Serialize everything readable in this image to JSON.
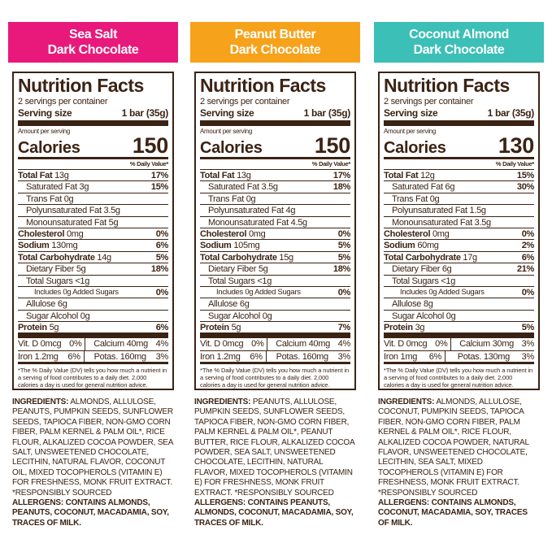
{
  "panels": [
    {
      "color": "#e8197a",
      "header": [
        "Sea Salt",
        "Dark Chocolate"
      ],
      "facts": {
        "title": "Nutrition Facts",
        "servings": "2 servings per container",
        "serving_size_label": "Serving size",
        "serving_size": "1 bar (35g)",
        "amount_label": "Amount per serving",
        "calories_label": "Calories",
        "calories": "150",
        "dv_header": "% Daily Value*",
        "rows": [
          {
            "label": "Total Fat",
            "amount": "13g",
            "dv": "17%"
          },
          {
            "label": "Saturated Fat",
            "amount": "3g",
            "dv": "15%"
          },
          {
            "label": "Trans Fat",
            "amount": "0g"
          },
          {
            "label": "Polyunsaturated Fat",
            "amount": "3.5g"
          },
          {
            "label": "Monounsaturated Fat",
            "amount": "5g"
          },
          {
            "label": "Cholesterol",
            "amount": "0mg",
            "dv": "0%"
          },
          {
            "label": "Sodium",
            "amount": "130mg",
            "dv": "6%"
          },
          {
            "label": "Total Carbohydrate",
            "amount": "14g",
            "dv": "5%"
          },
          {
            "label": "Dietary Fiber",
            "amount": "5g",
            "dv": "18%"
          },
          {
            "label": "Total Sugars",
            "amount": "<1g"
          },
          {
            "label": "Includes 0g Added Sugars",
            "dv": "0%"
          },
          {
            "label": "Allulose",
            "amount": "6g"
          },
          {
            "label": "Sugar Alcohol",
            "amount": "0g"
          },
          {
            "label": "Protein",
            "amount": "5g",
            "dv": "6%"
          }
        ],
        "vitamins": [
          [
            "Vit. D 0mcg",
            "0%",
            "Calcium 40mg",
            "4%"
          ],
          [
            "Iron 1.2mg",
            "6%",
            "Potas. 160mg",
            "3%"
          ]
        ],
        "footnote": "*The % Daily Value (DV) tells you how much a nutrient in a serving of food contributes to a daily diet. 2,000 calories a day is used for general nutrition advice."
      },
      "ingredients_label": "INGREDIENTS:",
      "ingredients": "ALMONDS, ALLULOSE, PEANUTS, PUMPKIN SEEDS, SUNFLOWER SEEDS, TAPIOCA FIBER, NON-GMO CORN FIBER, PALM KERNEL & PALM OIL*, RICE FLOUR, ALKALIZED COCOA POWDER, SEA SALT, UNSWEETENED CHOCOLATE, LECITHIN, NATURAL FLAVOR, COCONUT OIL, MIXED TOCOPHEROLS (VITAMIN E) FOR FRESHNESS, MONK FRUIT EXTRACT. *RESPONSIBLY SOURCED",
      "allergens": "ALLERGENS: CONTAINS ALMONDS, PEANUTS, COCONUT, MACADAMIA, SOY, TRACES OF MILK."
    },
    {
      "color": "#f7a21b",
      "header": [
        "Peanut Butter",
        "Dark Chocolate"
      ],
      "facts": {
        "title": "Nutrition Facts",
        "servings": "2 servings per container",
        "serving_size_label": "Serving size",
        "serving_size": "1 bar (35g)",
        "amount_label": "Amount per serving",
        "calories_label": "Calories",
        "calories": "150",
        "dv_header": "% Daily Value*",
        "rows": [
          {
            "label": "Total Fat",
            "amount": "13g",
            "dv": "17%"
          },
          {
            "label": "Saturated Fat",
            "amount": "3.5g",
            "dv": "18%"
          },
          {
            "label": "Trans Fat",
            "amount": "0g"
          },
          {
            "label": "Polyunsaturated Fat",
            "amount": "4g"
          },
          {
            "label": "Monounsaturated Fat",
            "amount": "4.5g"
          },
          {
            "label": "Cholesterol",
            "amount": "0mg",
            "dv": "0%"
          },
          {
            "label": "Sodium",
            "amount": "105mg",
            "dv": "5%"
          },
          {
            "label": "Total Carbohydrate",
            "amount": "15g",
            "dv": "5%"
          },
          {
            "label": "Dietary Fiber",
            "amount": "5g",
            "dv": "18%"
          },
          {
            "label": "Total Sugars",
            "amount": "<1g"
          },
          {
            "label": "Includes 0g Added Sugars",
            "dv": "0%"
          },
          {
            "label": "Allulose",
            "amount": "6g"
          },
          {
            "label": "Sugar Alcohol",
            "amount": "0g"
          },
          {
            "label": "Protein",
            "amount": "5g",
            "dv": "7%"
          }
        ],
        "vitamins": [
          [
            "Vit. D 0mcg",
            "0%",
            "Calcium 40mg",
            "4%"
          ],
          [
            "Iron 1.2mg",
            "6%",
            "Potas. 160mg",
            "3%"
          ]
        ],
        "footnote": "*The % Daily Value (DV) tells you how much a nutrient in a serving of food contributes to a daily diet. 2,000 calories a day is used for general nutrition advice."
      },
      "ingredients_label": "INGREDIENTS:",
      "ingredients": "PEANUTS, ALLULOSE, PUMPKIN SEEDS, SUNFLOWER SEEDS, TAPIOCA FIBER, NON-GMO CORN FIBER, PALM KERNEL & PALM OIL*, PEANUT BUTTER, RICE FLOUR, ALKALIZED COCOA POWDER, SEA SALT, UNSWEETENED CHOCOLATE, LECITHIN, NATURAL FLAVOR, MIXED TOCOPHEROLS (VITAMIN E) FOR FRESHNESS, MONK FRUIT EXTRACT. *RESPONSIBLY SOURCED",
      "allergens": "ALLERGENS: CONTAINS PEANUTS, ALMONDS, COCONUT, MACADAMIA, SOY, TRACES OF MILK."
    },
    {
      "color": "#3bbfb6",
      "header": [
        "Coconut Almond",
        "Dark Chocolate"
      ],
      "facts": {
        "title": "Nutrition Facts",
        "servings": "2 servings per container",
        "serving_size_label": "Serving size",
        "serving_size": "1 bar (35g)",
        "amount_label": "Amount per serving",
        "calories_label": "Calories",
        "calories": "130",
        "dv_header": "% Daily Value*",
        "rows": [
          {
            "label": "Total Fat",
            "amount": "12g",
            "dv": "15%"
          },
          {
            "label": "Saturated Fat",
            "amount": "6g",
            "dv": "30%"
          },
          {
            "label": "Trans Fat",
            "amount": "0g"
          },
          {
            "label": "Polyunsaturated Fat",
            "amount": "1.5g"
          },
          {
            "label": "Monounsaturated Fat",
            "amount": "3.5g"
          },
          {
            "label": "Cholesterol",
            "amount": "0mg",
            "dv": "0%"
          },
          {
            "label": "Sodium",
            "amount": "60mg",
            "dv": "2%"
          },
          {
            "label": "Total Carbohydrate",
            "amount": "17g",
            "dv": "6%"
          },
          {
            "label": "Dietary Fiber",
            "amount": "6g",
            "dv": "21%"
          },
          {
            "label": "Total Sugars",
            "amount": "<1g"
          },
          {
            "label": "Includes 0g Added Sugars",
            "dv": "0%"
          },
          {
            "label": "Allulose",
            "amount": "8g"
          },
          {
            "label": "Sugar Alcohol",
            "amount": "0g"
          },
          {
            "label": "Protein",
            "amount": "3g",
            "dv": "5%"
          }
        ],
        "vitamins": [
          [
            "Vit. D 0mcg",
            "0%",
            "Calcium 30mg",
            "3%"
          ],
          [
            "Iron 1mg",
            "6%",
            "Potas. 130mg",
            "3%"
          ]
        ],
        "footnote": "*The % Daily Value (DV) tells you how much a nutrient in a serving of food contributes to a daily diet. 2,000 calories a day is used for general nutrition advice."
      },
      "ingredients_label": "INGREDIENTS:",
      "ingredients": "ALMONDS, ALLULOSE, COCONUT, PUMPKIN SEEDS, TAPIOCA FIBER, NON-GMO CORN FIBER, PALM KERNEL & PALM OIL*, RICE FLOUR, ALKALIZED COCOA POWDER, NATURAL FLAVOR, UNSWEETENED CHOCOLATE, LECITHIN, SEA SALT, MIXED TOCOPHEROLS (VITAMIN E) FOR FRESHNESS, MONK FRUIT EXTRACT. *RESPONSIBLY SOURCED",
      "allergens": "ALLERGENS: CONTAINS ALMONDS, COCONUT, MACADAMIA, SOY, TRACES OF MILK."
    }
  ]
}
